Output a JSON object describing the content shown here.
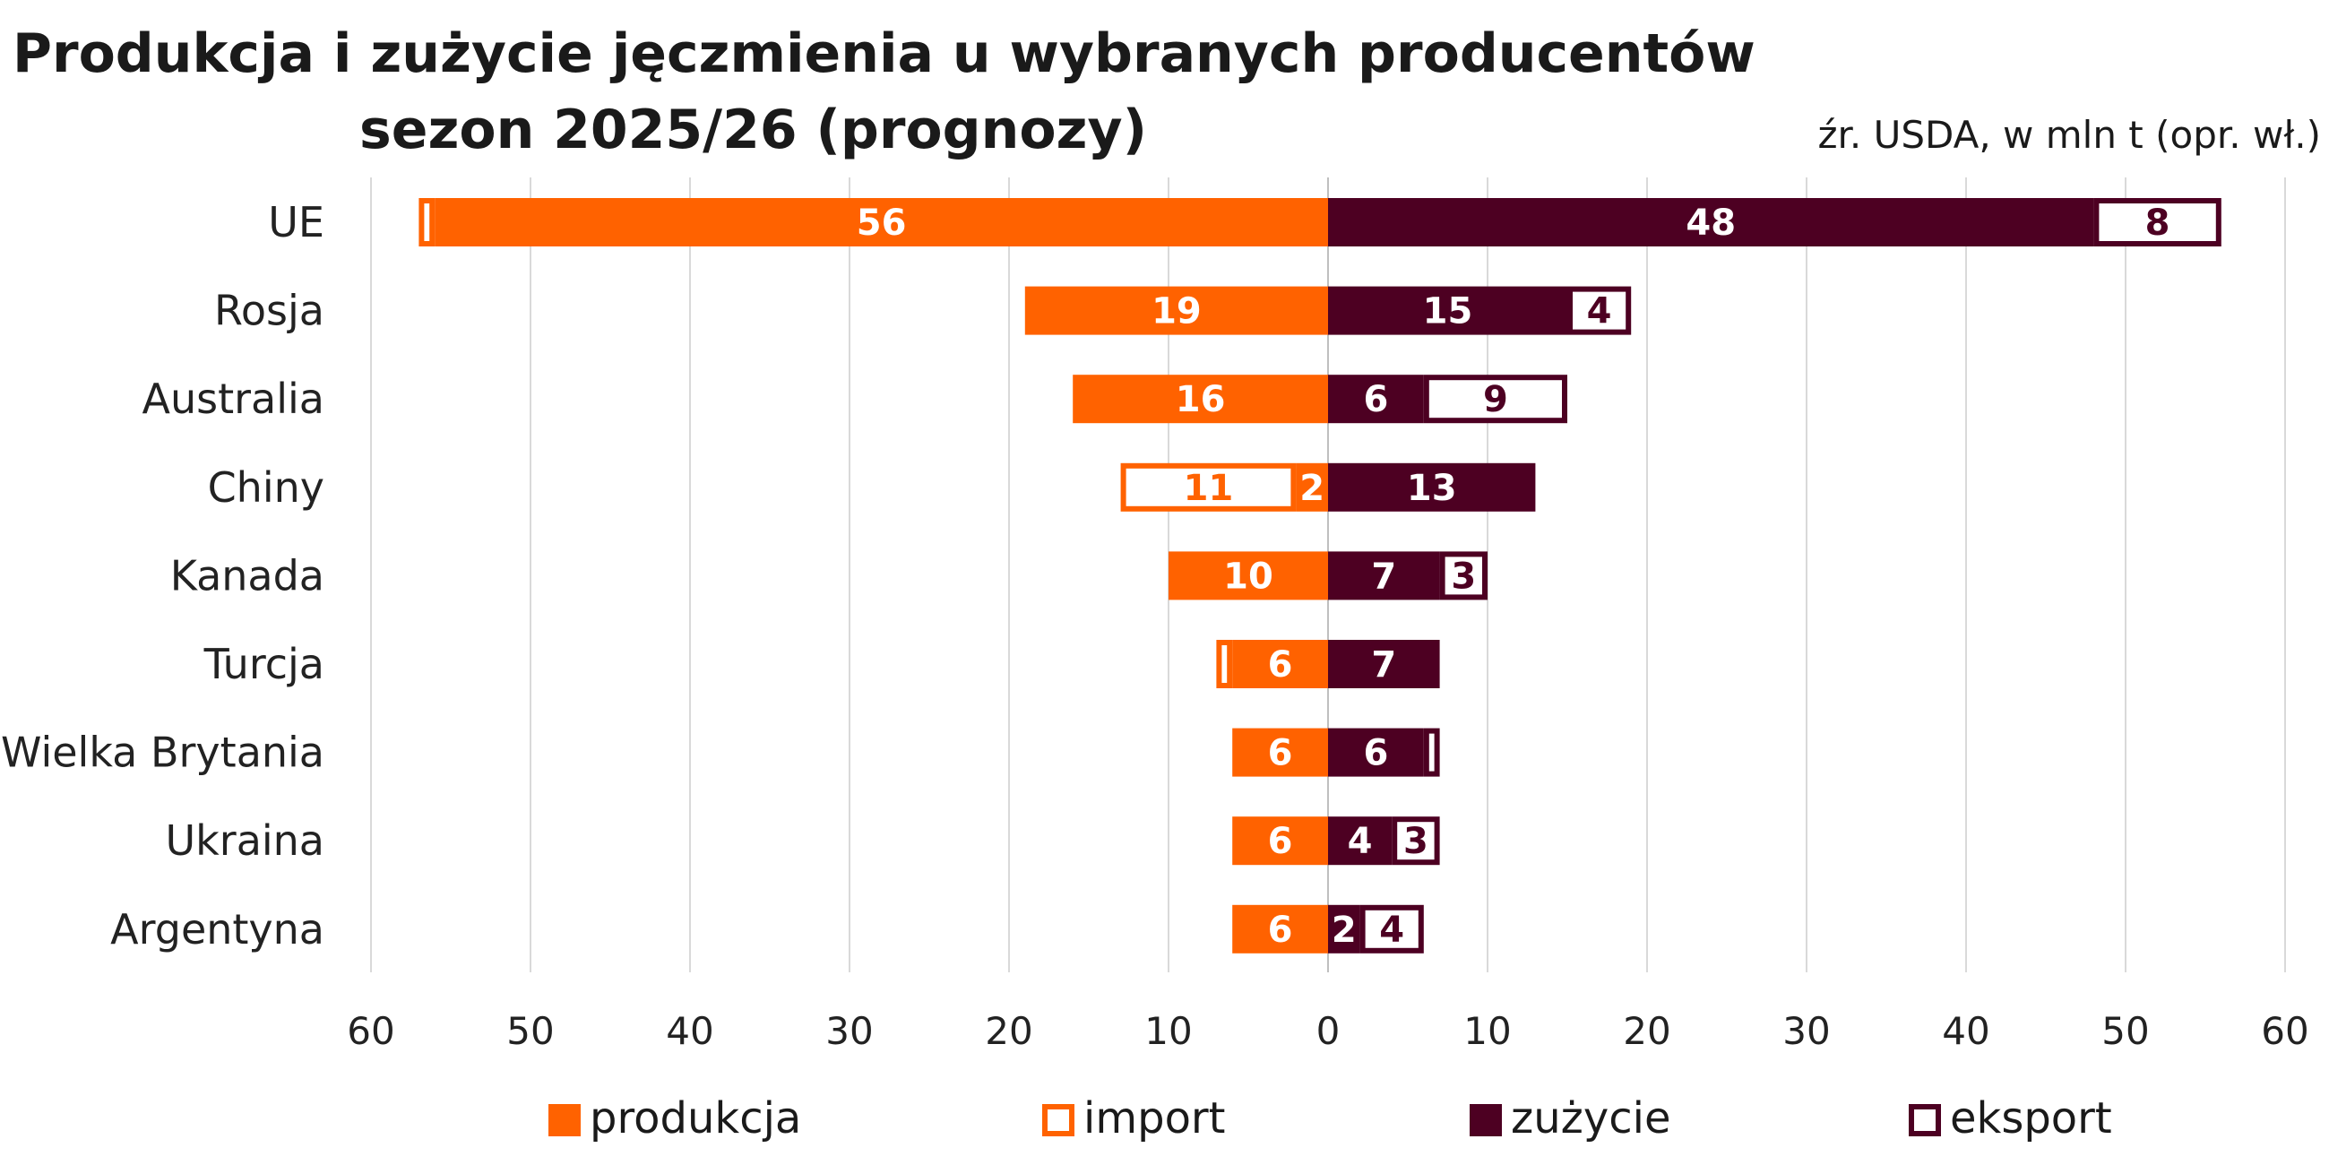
{
  "title_line1": "Produkcja i zużycie jęczmienia u wybranych producentów",
  "title_line2": "sezon 2025/26 (prognozy)",
  "source": "źr. USDA, w mln t (opr. wł.)",
  "colors": {
    "produkcja": "#FF6200",
    "zuzycie": "#4D0022",
    "grid": "#D9D9D9",
    "axis": "#BFBFBF"
  },
  "chart_data": {
    "type": "bar",
    "orientation": "horizontal-butterfly",
    "title": "Produkcja i zużycie jęczmienia u wybranych producentów sezon 2025/26 (prognozy)",
    "categories": [
      "UE",
      "Rosja",
      "Australia",
      "Chiny",
      "Kanada",
      "Turcja",
      "Wielka Brytania",
      "Ukraina",
      "Argentyna"
    ],
    "series": [
      {
        "name": "produkcja",
        "side": "left",
        "style": "filled",
        "color": "#FF6200",
        "values": [
          56,
          19,
          16,
          2,
          10,
          6,
          6,
          6,
          6
        ],
        "labels": [
          "56",
          "19",
          "16",
          "2",
          "10",
          "6",
          "6",
          "6",
          "6"
        ]
      },
      {
        "name": "import",
        "side": "left",
        "style": "outline",
        "color": "#FF6200",
        "values": [
          1,
          0,
          0,
          11,
          0,
          1,
          0,
          0,
          0
        ],
        "labels": [
          "",
          "",
          "",
          "11",
          "",
          "",
          "",
          "",
          ""
        ]
      },
      {
        "name": "zużycie",
        "side": "right",
        "style": "filled",
        "color": "#4D0022",
        "values": [
          48,
          15,
          6,
          13,
          7,
          7,
          6,
          4,
          2
        ],
        "labels": [
          "48",
          "15",
          "6",
          "13",
          "7",
          "7",
          "6",
          "4",
          "2"
        ]
      },
      {
        "name": "eksport",
        "side": "right",
        "style": "outline",
        "color": "#4D0022",
        "values": [
          8,
          4,
          9,
          0,
          3,
          0,
          1,
          3,
          4
        ],
        "labels": [
          "8",
          "4",
          "9",
          "",
          "3",
          "",
          "",
          "3",
          "4"
        ]
      }
    ],
    "x_ticks": [
      "60",
      "50",
      "40",
      "30",
      "20",
      "10",
      "0",
      "10",
      "20",
      "30",
      "40",
      "50",
      "60"
    ],
    "xlim": [
      -60,
      60
    ],
    "grid": true,
    "legend": {
      "placement": "bottom",
      "items": [
        {
          "label": "produkcja",
          "style": "filled"
        },
        {
          "label": "import",
          "style": "outline-orange"
        },
        {
          "label": "zużycie",
          "style": "filled-dark"
        },
        {
          "label": "eksport",
          "style": "outline-dark"
        }
      ]
    }
  }
}
